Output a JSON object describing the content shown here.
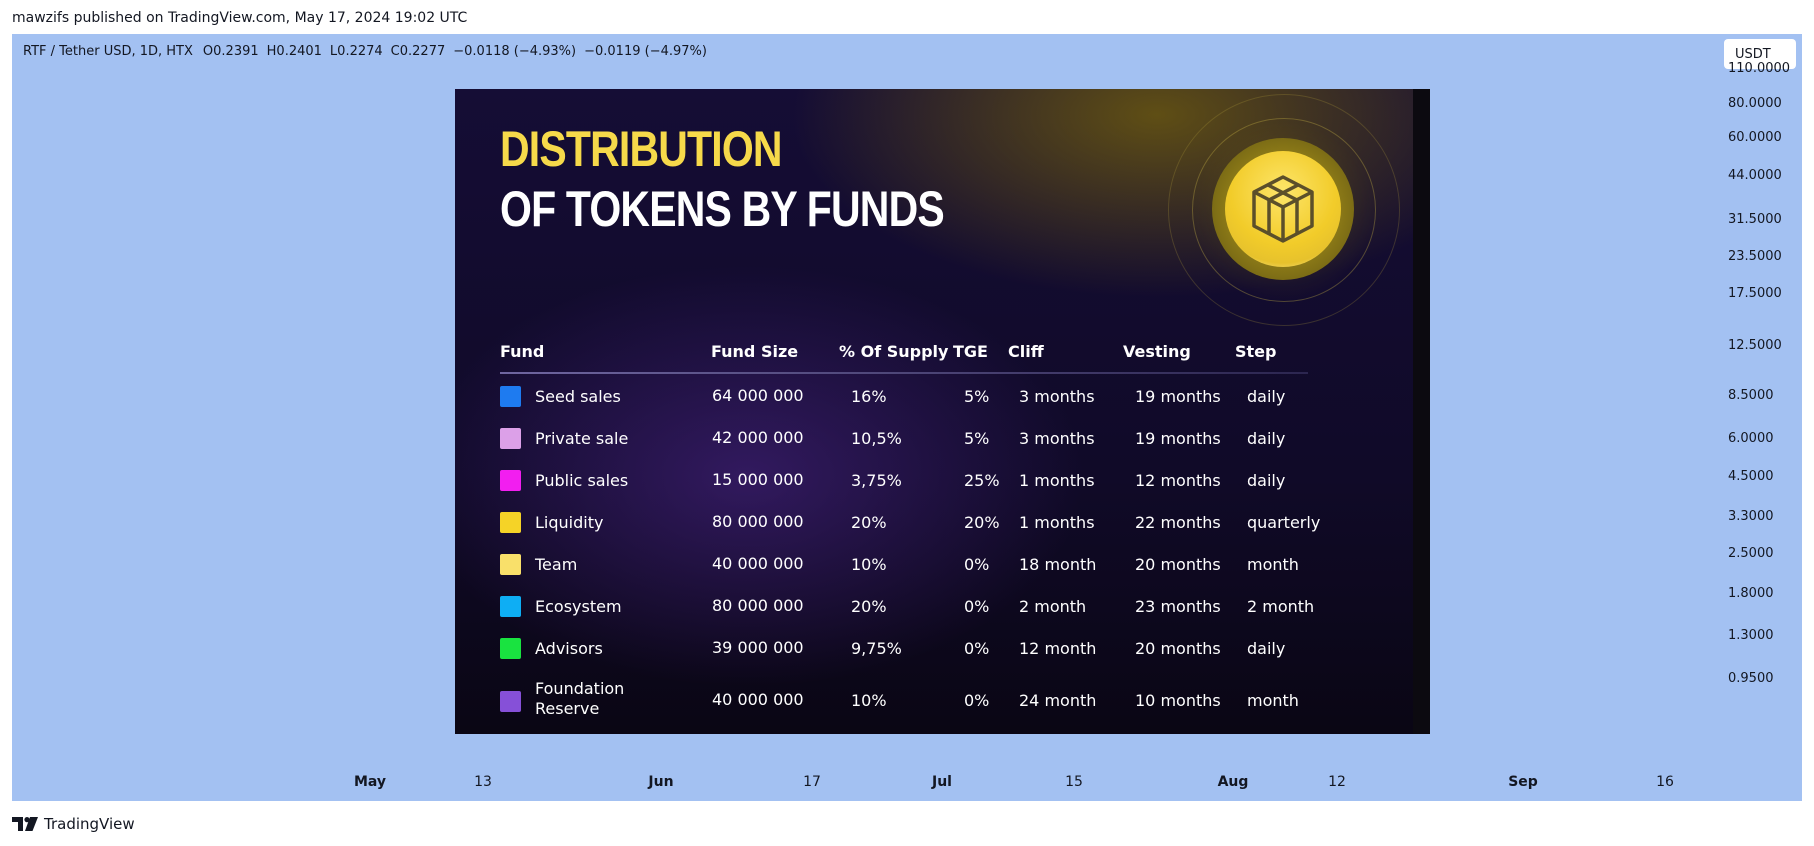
{
  "published_line": "mawzifs published on TradingView.com, May 17, 2024 19:02 UTC",
  "symbol": {
    "pair": "RTF / Tether USD, 1D, HTX",
    "open_label": "O",
    "open": "0.2391",
    "high_label": "H",
    "high": "0.2401",
    "low_label": "L",
    "low": "0.2274",
    "close_label": "C",
    "close": "0.2277",
    "change": "−0.0118 (−4.93%)",
    "change2": "−0.0119 (−4.97%)"
  },
  "currency_button": "USDT",
  "y_axis": [
    "110.0000",
    "80.0000",
    "60.0000",
    "44.0000",
    "31.5000",
    "23.5000",
    "17.5000",
    "12.5000",
    "8.5000",
    "6.0000",
    "4.5000",
    "3.3000",
    "2.5000",
    "1.8000",
    "1.3000",
    "0.9500"
  ],
  "x_axis": [
    {
      "label": "May",
      "bold": true
    },
    {
      "label": "13",
      "bold": false
    },
    {
      "label": "Jun",
      "bold": true
    },
    {
      "label": "17",
      "bold": false
    },
    {
      "label": "Jul",
      "bold": true
    },
    {
      "label": "15",
      "bold": false
    },
    {
      "label": "Aug",
      "bold": true
    },
    {
      "label": "12",
      "bold": false
    },
    {
      "label": "Sep",
      "bold": true
    },
    {
      "label": "16",
      "bold": false
    }
  ],
  "infographic": {
    "title_line1": "DISTRIBUTION",
    "title_line2": "OF TOKENS BY FUNDS",
    "headers": {
      "fund": "Fund",
      "size": "Fund Size",
      "supply": "% Of Supply",
      "tge": "TGE",
      "cliff": "Cliff",
      "vesting": "Vesting",
      "step": "Step"
    },
    "rows": [
      {
        "fund": "Seed sales",
        "size": "64 000 000",
        "supply": "16%",
        "tge": "5%",
        "cliff": "3 months",
        "vesting": "19 months",
        "step": "daily",
        "color": "#1e7bf0"
      },
      {
        "fund": "Private sale",
        "size": "42 000 000",
        "supply": "10,5%",
        "tge": "5%",
        "cliff": "3 months",
        "vesting": "19 months",
        "step": "daily",
        "color": "#dca0e8"
      },
      {
        "fund": "Public sales",
        "size": "15 000 000",
        "supply": "3,75%",
        "tge": "25%",
        "cliff": "1 months",
        "vesting": "12 months",
        "step": "daily",
        "color": "#f21ef0"
      },
      {
        "fund": "Liquidity",
        "size": "80 000 000",
        "supply": "20%",
        "tge": "20%",
        "cliff": "1 months",
        "vesting": "22 months",
        "step": "quarterly",
        "color": "#f5d327"
      },
      {
        "fund": "Team",
        "size": "40 000 000",
        "supply": "10%",
        "tge": "0%",
        "cliff": "18 month",
        "vesting": "20 months",
        "step": "month",
        "color": "#f9e06a"
      },
      {
        "fund": "Ecosystem",
        "size": "80 000 000",
        "supply": "20%",
        "tge": "0%",
        "cliff": "2 month",
        "vesting": "23 months",
        "step": "2 month",
        "color": "#0eaef4"
      },
      {
        "fund": "Advisors",
        "size": "39 000 000",
        "supply": "9,75%",
        "tge": "0%",
        "cliff": "12 month",
        "vesting": "20 months",
        "step": "daily",
        "color": "#19e340"
      },
      {
        "fund_line1": "Foundation",
        "fund_line2": "Reserve",
        "size": "40 000 000",
        "supply": "10%",
        "tge": "0%",
        "cliff": "24 month",
        "vesting": "10 months",
        "step": "month",
        "color": "#8650d8"
      }
    ]
  },
  "footer": {
    "brand": "TradingView",
    "logo_icon": "tradingview-logo-icon"
  }
}
